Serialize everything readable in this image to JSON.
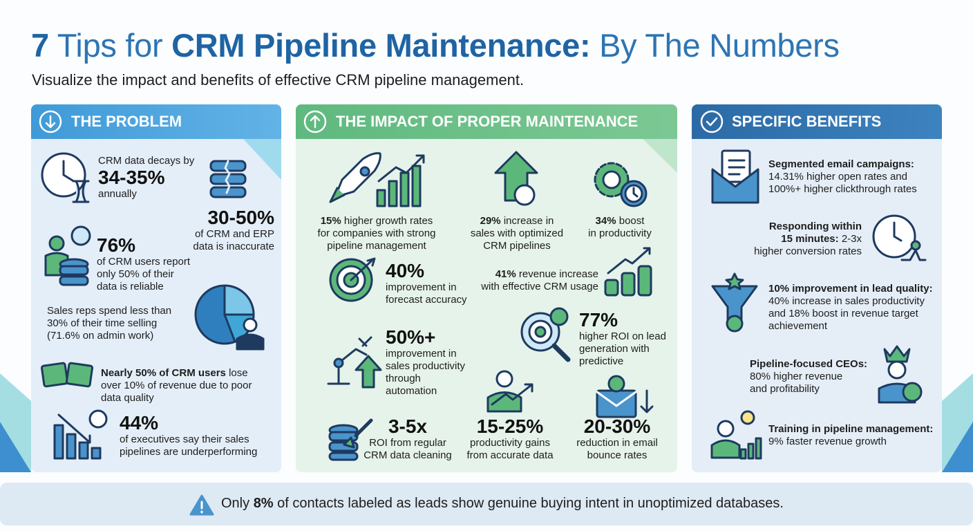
{
  "header": {
    "title": {
      "number": "7",
      "lead": "Tips for",
      "emphasis": "CRM Pipeline Maintenance:",
      "tail": "By The Numbers"
    },
    "subtitle": "Visualize the impact and benefits of effective CRM pipeline management."
  },
  "problem": {
    "heading": "THE PROBLEM",
    "stats": [
      {
        "intro": "CRM data decays by",
        "figure": "34-35%",
        "lines": [
          "annually"
        ]
      },
      {
        "figure": "30-50%",
        "lines": [
          "of CRM and ERP",
          "data is inaccurate"
        ]
      },
      {
        "figure": "76%",
        "lines": [
          "of CRM users report",
          "only 50% of their",
          "data is reliable"
        ]
      },
      {
        "lines": [
          "Sales reps spend less than",
          "30% of their time selling",
          "(71.6% on admin work)"
        ]
      },
      {
        "lines": [
          {
            "bold": "Nearly 50% of CRM users",
            "text": "lose"
          },
          "over 10% of revenue due to poor",
          "data quality"
        ]
      },
      {
        "figure": "44%",
        "lines": [
          "of executives say their sales",
          "pipelines are underperforming"
        ]
      }
    ]
  },
  "impact": {
    "heading": "THE IMPACT OF PROPER MAINTENANCE",
    "stats": [
      {
        "lines": [
          {
            "bold": "15%",
            "text": "higher growth rates"
          },
          "for companies with strong",
          "pipeline management"
        ]
      },
      {
        "lines": [
          {
            "bold": "29%",
            "text": "increase in"
          },
          "sales with optimized",
          "CRM pipelines"
        ]
      },
      {
        "lines": [
          {
            "bold": "34%",
            "text": "boost"
          },
          "in productivity"
        ]
      },
      {
        "figure": "40%",
        "lines": [
          "improvement in",
          "forecast accuracy"
        ]
      },
      {
        "lines": [
          {
            "bold": "41%",
            "text": "revenue increase"
          },
          "with effective CRM usage"
        ]
      },
      {
        "figure": "50%+",
        "lines": [
          "improvement in",
          "sales productivity",
          "through",
          "automation"
        ]
      },
      {
        "figure": "77%",
        "lines": [
          "higher ROI on lead",
          "generation with",
          "predictive"
        ]
      },
      {
        "figure": "3-5x",
        "lines": [
          "ROI from regular",
          "CRM data cleaning"
        ]
      },
      {
        "figure": "15-25%",
        "lines": [
          "productivity gains",
          "from accurate data"
        ]
      },
      {
        "figure": "20-30%",
        "lines": [
          "reduction in email",
          "bounce rates"
        ]
      }
    ]
  },
  "benefits": {
    "heading": "SPECIFIC BENEFITS",
    "stats": [
      {
        "lines": [
          {
            "bold": "Segmented email campaigns:"
          },
          "14.31% higher open rates and",
          "100%+ higher clickthrough rates"
        ]
      },
      {
        "lines": [
          {
            "bold": "Responding within"
          },
          {
            "bold": "15 minutes:",
            "text": "2-3x"
          },
          "higher conversion rates"
        ]
      },
      {
        "lines": [
          {
            "bold": "10% improvement in lead quality:"
          },
          "40% increase in sales productivity",
          "and 18% boost in revenue target",
          "achievement"
        ]
      },
      {
        "lines": [
          {
            "bold": "Pipeline-focused CEOs:"
          },
          "80% higher revenue",
          "and profitability"
        ]
      },
      {
        "lines": [
          {
            "bold": "Training in pipeline management:"
          },
          "9% faster revenue growth"
        ]
      }
    ]
  },
  "footer": {
    "lead": "Only",
    "emphasis": "8%",
    "tail": "of contacts labeled as leads show genuine buying intent in unoptimized databases."
  }
}
